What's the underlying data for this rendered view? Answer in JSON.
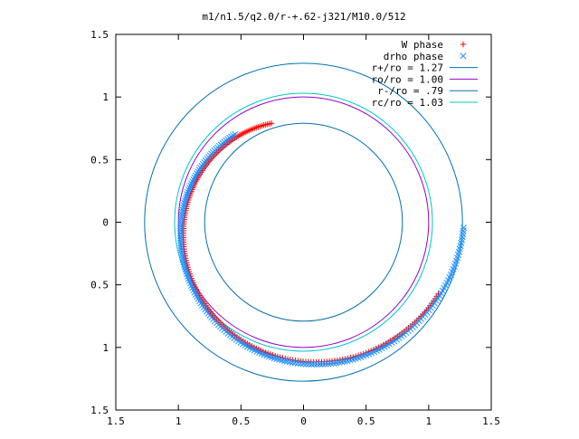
{
  "chart_data": {
    "type": "scatter",
    "title": "m1/n1.5/q2.0/r-+.62-j321/M10.0/512",
    "xlabel": "",
    "ylabel": "",
    "xlim": [
      -1.5,
      1.5
    ],
    "ylim": [
      -1.5,
      1.5
    ],
    "x_ticks": [
      -1.5,
      -1,
      -0.5,
      0,
      0.5,
      1,
      1.5
    ],
    "y_ticks": [
      -1.5,
      -1,
      -0.5,
      0,
      0.5,
      1,
      1.5
    ],
    "x_tick_labels": [
      "1.5",
      "1",
      "0.5",
      "0",
      "0.5",
      "1",
      "1.5"
    ],
    "y_tick_labels": [
      "1.5",
      "1",
      "0.5",
      "0",
      "0.5",
      "1",
      "1.5"
    ],
    "grid": false,
    "legend_position": "top-right",
    "circles": [
      {
        "name": "r+/ro = 1.27",
        "radius": 1.27,
        "color": "#0072b2"
      },
      {
        "name": "ro/ro = 1.00",
        "radius": 1.0,
        "color": "#9400d3"
      },
      {
        "name": "r-/ro = .79",
        "radius": 0.79,
        "color": "#0072b2"
      },
      {
        "name": "rc/ro = 1.03",
        "radius": 1.03,
        "color": "#00c8c8"
      }
    ],
    "series": [
      {
        "name": "W phase",
        "marker": "+",
        "color": "#ff0000",
        "curve": {
          "r_start": 1.22,
          "r_end": 0.83,
          "angle_start": 28,
          "angle_end": 252
        }
      },
      {
        "name": "drho phase",
        "marker": "x",
        "color": "#1e90ff",
        "curve": {
          "r_start": 1.28,
          "r_end": 0.89,
          "angle_start": 2,
          "angle_end": 232
        }
      }
    ],
    "legend_order": [
      "W phase",
      "drho phase",
      "r+/ro = 1.27",
      "ro/ro = 1.00",
      "r-/ro = .79",
      "rc/ro = 1.03"
    ]
  }
}
